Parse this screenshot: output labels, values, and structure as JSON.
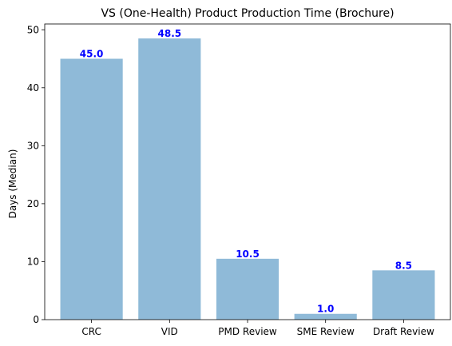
{
  "chart_data": {
    "type": "bar",
    "title": "VS (One-Health) Product Production Time (Brochure)",
    "xlabel": "",
    "ylabel": "Days (Median)",
    "categories": [
      "CRC",
      "VID",
      "PMD Review",
      "SME Review",
      "Draft Review"
    ],
    "values": [
      45.0,
      48.5,
      10.5,
      1.0,
      8.5
    ],
    "data_labels": [
      "45.0",
      "48.5",
      "10.5",
      "1.0",
      "8.5"
    ],
    "yticks": [
      0,
      10,
      20,
      30,
      40,
      50
    ],
    "ylim": [
      0,
      51
    ],
    "grid": false,
    "bar_color": "#8fbad8",
    "label_color": "#0000ff"
  }
}
